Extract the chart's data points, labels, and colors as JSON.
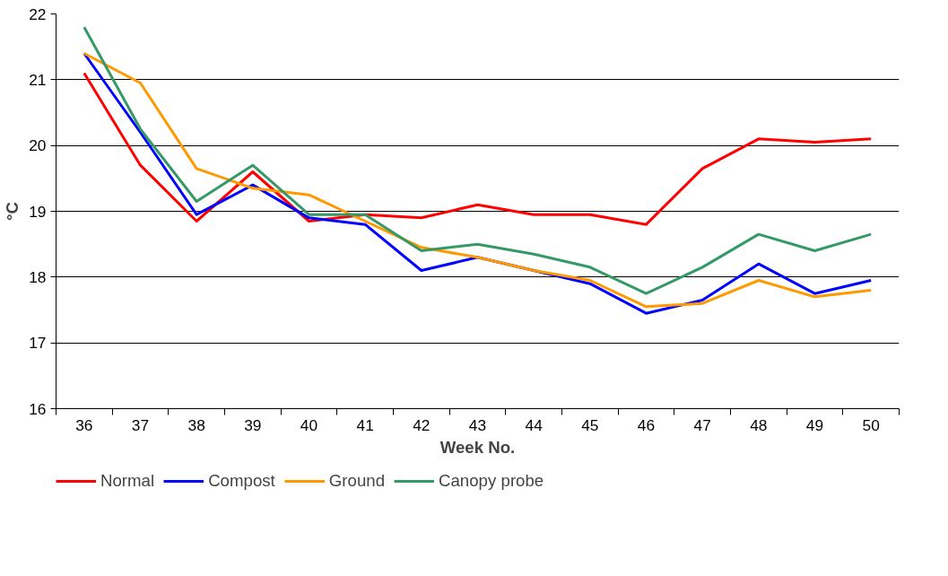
{
  "chart_data": {
    "type": "line",
    "xlabel": "Week No.",
    "ylabel": "°C",
    "categories": [
      "36",
      "37",
      "38",
      "39",
      "40",
      "41",
      "42",
      "43",
      "44",
      "45",
      "46",
      "47",
      "48",
      "49",
      "50"
    ],
    "series": [
      {
        "name": "Normal",
        "color": "#ff0000",
        "values": [
          21.1,
          19.7,
          18.85,
          19.6,
          18.85,
          18.95,
          18.9,
          19.1,
          18.95,
          18.95,
          18.8,
          19.65,
          20.1,
          20.05,
          20.1
        ]
      },
      {
        "name": "Compost",
        "color": "#0000ff",
        "values": [
          21.4,
          20.2,
          18.95,
          19.4,
          18.9,
          18.8,
          18.1,
          18.3,
          18.1,
          17.9,
          17.45,
          17.65,
          18.2,
          17.75,
          17.95
        ]
      },
      {
        "name": "Ground",
        "color": "#ff9900",
        "values": [
          21.4,
          20.95,
          19.65,
          19.35,
          19.25,
          18.85,
          18.45,
          18.3,
          18.1,
          17.95,
          17.55,
          17.6,
          17.95,
          17.7,
          17.8
        ]
      },
      {
        "name": "Canopy probe",
        "color": "#339966",
        "values": [
          21.8,
          20.25,
          19.15,
          19.7,
          18.95,
          18.95,
          18.4,
          18.5,
          18.35,
          18.15,
          17.75,
          18.15,
          18.65,
          18.4,
          18.65
        ]
      }
    ],
    "ylim": [
      16,
      22
    ],
    "yticks": [
      16,
      17,
      18,
      19,
      20,
      21,
      22
    ],
    "grid": "y",
    "legend": "bottom left",
    "marker": "none",
    "line_style": "solid"
  }
}
